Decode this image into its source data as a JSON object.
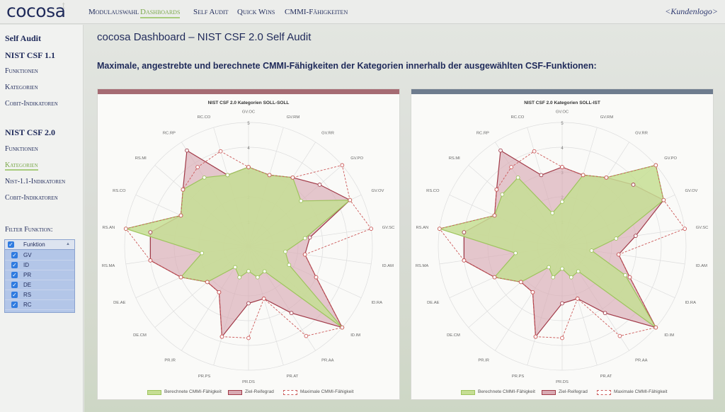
{
  "header": {
    "logo": "cocosa",
    "logo_mark": "t",
    "nav": [
      "Modulauswahl",
      "Dashboards",
      "Self Audit",
      "Quick Wins",
      "CMMI-Fähigkeiten"
    ],
    "active_nav": "Dashboards",
    "customer_logo": "<Kundenlogo>"
  },
  "sidebar": {
    "items": [
      {
        "label": "Self Audit",
        "style": "h"
      },
      {
        "label": "NIST CSF 1.1",
        "style": "h"
      },
      {
        "label": "Funktionen",
        "style": "s"
      },
      {
        "label": "Kategorien",
        "style": "s"
      },
      {
        "label": "Cobit-Indikatoren",
        "style": "s"
      },
      {
        "label": "NIST CSF 2.0",
        "style": "h"
      },
      {
        "label": "Funktionen",
        "style": "s"
      },
      {
        "label": "Kategorien",
        "style": "s",
        "active": true
      },
      {
        "label": "Nist-1.1-Indikatoren",
        "style": "s"
      },
      {
        "label": "Cobit-Indikatoren",
        "style": "s"
      }
    ],
    "filter": {
      "label": "Filter Funktion:",
      "column": "Funktion",
      "rows": [
        {
          "label": "GV",
          "checked": true
        },
        {
          "label": "ID",
          "checked": true
        },
        {
          "label": "PR",
          "checked": true
        },
        {
          "label": "DE",
          "checked": true
        },
        {
          "label": "RS",
          "checked": true
        },
        {
          "label": "RC",
          "checked": true
        }
      ]
    }
  },
  "main": {
    "title": "cocosa Dashboard – NIST CSF 2.0 Self Audit",
    "subtitle": "Maximale, angestrebte und berechnete CMMI-Fähigkeiten der Kategorien innerhalb der ausgewählten CSF-Funktionen:"
  },
  "colors": {
    "bar_left": "#a56b73",
    "bar_right": "#6e7c8e",
    "calc_fill": "#c6de94",
    "calc_stroke": "#9ec45e",
    "target_fill": "#d9aab3",
    "target_stroke": "#a13a48",
    "max_stroke": "#cc5a5a",
    "grid": "#dddddd"
  },
  "legend": [
    "Berechnete CMMI-Fähigkeit",
    "Ziel-Reifegrad",
    "Maximale CMMI-Fähigkeit"
  ],
  "chart_data": [
    {
      "type": "radar",
      "title": "NIST CSF 2.0 Kategorien SOLL-SOLL",
      "categories": [
        "GV.OC",
        "GV.RM",
        "GV.RR",
        "GV.PO",
        "GV.OV",
        "GV.SC",
        "ID.AM",
        "ID.RA",
        "ID.IM",
        "PR.AA",
        "PR.AT",
        "PR.DS",
        "PR.PS",
        "PR.IR",
        "DE.CM",
        "DE.AE",
        "RS.MA",
        "RS.AN",
        "RS.CO",
        "RS.MI",
        "RC.RP",
        "RC.CO"
      ],
      "ticks": [
        1,
        2,
        3,
        4,
        5
      ],
      "rmax": 5,
      "series": [
        {
          "name": "Berechnete CMMI-Fähigkeit",
          "values": [
            3.2,
            3.0,
            3.3,
            2.8,
            4.5,
            2.3,
            1.5,
            1.8,
            5.0,
            1.2,
            1.3,
            1.0,
            1.3,
            1.0,
            2.2,
            3.0,
            1.9,
            5.0,
            3.0,
            3.5,
            3.3,
            3.0
          ]
        },
        {
          "name": "Ziel-Reifegrad",
          "values": [
            3.2,
            3.0,
            3.3,
            3.8,
            4.5,
            2.5,
            2.3,
            3.0,
            5.0,
            3.2,
            2.2,
            2.3,
            3.8,
            2.2,
            2.2,
            3.0,
            4.0,
            4.0,
            3.0,
            3.5,
            4.6,
            3.0
          ]
        },
        {
          "name": "Maximale CMMI-Fähigkeit",
          "values": [
            3.2,
            3.0,
            3.3,
            5.0,
            4.5,
            5.0,
            2.3,
            3.0,
            5.0,
            4.3,
            2.2,
            3.7,
            3.8,
            2.2,
            2.2,
            3.0,
            4.0,
            5.0,
            3.0,
            3.5,
            3.8,
            4.0
          ]
        }
      ]
    },
    {
      "type": "radar",
      "title": "NIST CSF 2.0 Kategorien SOLL-IST",
      "categories": [
        "GV.OC",
        "GV.RM",
        "GV.RR",
        "GV.PO",
        "GV.OV",
        "GV.SC",
        "ID.AM",
        "ID.RA",
        "ID.IM",
        "PR.AA",
        "PR.AT",
        "PR.DS",
        "PR.PS",
        "PR.IR",
        "DE.CM",
        "DE.AE",
        "RS.MA",
        "RS.AN",
        "RS.CO",
        "RS.MI",
        "RC.RP",
        "RC.CO"
      ],
      "ticks": [
        1,
        2,
        3,
        4,
        5
      ],
      "rmax": 5,
      "series": [
        {
          "name": "Berechnete CMMI-Fähigkeit",
          "values": [
            1.8,
            3.0,
            3.3,
            5.0,
            4.5,
            2.2,
            1.2,
            2.8,
            5.0,
            1.2,
            1.3,
            0.9,
            1.3,
            1.0,
            2.2,
            3.0,
            1.9,
            5.0,
            3.0,
            3.2,
            3.3,
            1.4
          ]
        },
        {
          "name": "Ziel-Reifegrad",
          "values": [
            3.2,
            3.0,
            3.3,
            3.8,
            4.5,
            3.0,
            2.3,
            3.0,
            5.0,
            3.2,
            2.2,
            2.3,
            3.8,
            2.2,
            2.2,
            3.0,
            4.0,
            4.0,
            3.0,
            3.5,
            4.6,
            3.0
          ]
        },
        {
          "name": "Maximale CMMI-Fähigkeit",
          "values": [
            3.2,
            3.0,
            3.3,
            5.0,
            4.5,
            5.0,
            2.3,
            3.0,
            5.0,
            4.3,
            2.2,
            3.7,
            3.8,
            2.2,
            2.2,
            3.0,
            4.0,
            5.0,
            3.0,
            3.5,
            3.8,
            4.0
          ]
        }
      ]
    }
  ]
}
